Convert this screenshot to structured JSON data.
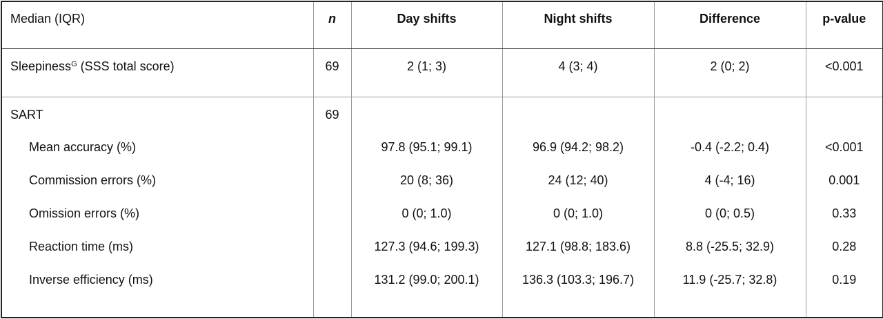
{
  "table": {
    "header": [
      "Median (IQR)",
      "n",
      "Day shifts",
      "Night shifts",
      "Difference",
      "p-value"
    ],
    "rows": [
      {
        "label": "Sleepiness",
        "sup": "G",
        "label_rest": " (SSS total score)",
        "n": "69",
        "cells": [
          "2 (1; 3)",
          "4 (3; 4)",
          "2 (0; 2)",
          "<0.001"
        ]
      },
      {
        "label": "SART",
        "n": "69",
        "subrows": [
          {
            "label": "Mean accuracy (%)",
            "cells": [
              "97.8 (95.1; 99.1)",
              "96.9 (94.2; 98.2)",
              "-0.4 (-2.2; 0.4)",
              "<0.001"
            ]
          },
          {
            "label": "Commission errors (%)",
            "cells": [
              "20 (8; 36)",
              "24 (12; 40)",
              "4 (-4; 16)",
              "0.001"
            ]
          },
          {
            "label": "Omission errors (%)",
            "cells": [
              "0 (0; 1.0)",
              "0 (0; 1.0)",
              "0 (0; 0.5)",
              "0.33"
            ]
          },
          {
            "label": "Reaction time (ms)",
            "cells": [
              "127.3 (94.6; 199.3)",
              "127.1 (98.8; 183.6)",
              "8.8 (-25.5; 32.9)",
              "0.28"
            ]
          },
          {
            "label": "Inverse efficiency (ms)",
            "cells": [
              "131.2 (99.0; 200.1)",
              "136.3 (103.3; 196.7)",
              "11.9 (-25.7; 32.8)",
              "0.19"
            ]
          }
        ]
      }
    ]
  }
}
